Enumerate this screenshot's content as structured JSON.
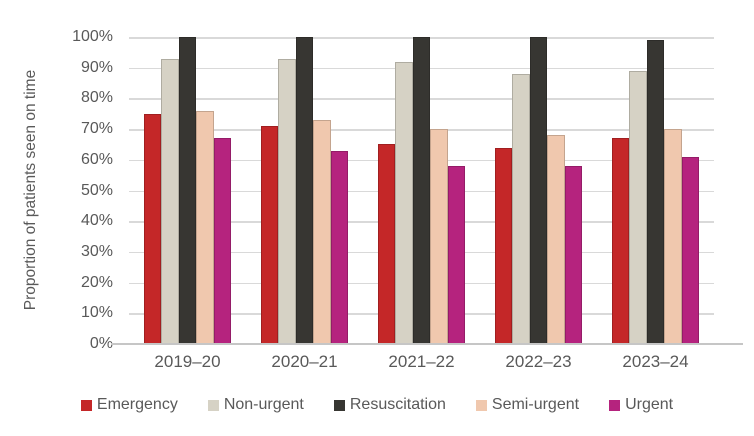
{
  "chart_data": {
    "type": "bar",
    "title": "",
    "xlabel": "",
    "ylabel": "Proportion of patients seen on time",
    "categories": [
      "2019–20",
      "2020–21",
      "2021–22",
      "2022–23",
      "2023–24"
    ],
    "series": [
      {
        "name": "Emergency",
        "color": "#c42728",
        "values": [
          75,
          71,
          65,
          64,
          67
        ]
      },
      {
        "name": "Non-urgent",
        "color": "#d6d2c5",
        "values": [
          93,
          93,
          92,
          88,
          89
        ]
      },
      {
        "name": "Resuscitation",
        "color": "#373632",
        "values": [
          100,
          100,
          100,
          100,
          99
        ]
      },
      {
        "name": "Semi-urgent",
        "color": "#f0c8ae",
        "values": [
          76,
          73,
          70,
          68,
          70
        ]
      },
      {
        "name": "Urgent",
        "color": "#b5237e",
        "values": [
          67,
          63,
          58,
          58,
          61
        ]
      }
    ],
    "ylim": [
      0,
      100
    ],
    "ytick_step": 10,
    "ytick_labels": [
      "0%",
      "10%",
      "20%",
      "30%",
      "40%",
      "50%",
      "60%",
      "70%",
      "80%",
      "90%",
      "100%"
    ],
    "grid": true,
    "legend_position": "bottom"
  },
  "colors": {
    "background": "#ffffff",
    "text": "#595959",
    "gridline": "#d9d9d9",
    "axis_line": "#c6c6c6"
  }
}
